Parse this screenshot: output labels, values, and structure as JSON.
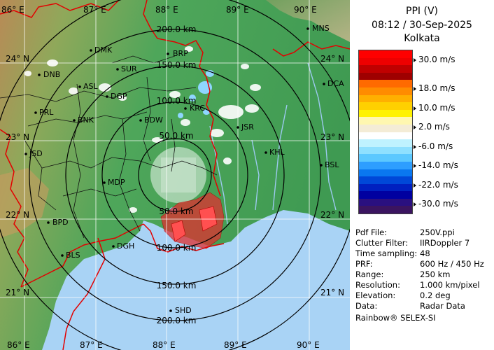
{
  "header": {
    "title": "PPI (V)",
    "datetime": "08:12 / 30-Sep-2025",
    "station": "Kolkata"
  },
  "colorbar": {
    "segments": [
      "#ff0000",
      "#ee0000",
      "#c00000",
      "#9e0000",
      "#ff6a00",
      "#ff8c00",
      "#ffb000",
      "#ffd000",
      "#fff200",
      "#fff7b0",
      "#f4ecd6",
      "#ffffff",
      "#bff2ff",
      "#8fe0ff",
      "#5cc8ff",
      "#2e9eff",
      "#0a78f0",
      "#0048d8",
      "#0020c0",
      "#0000a0",
      "#2a1080",
      "#3b1460"
    ],
    "labels": [
      "30.0 m/s",
      "18.0 m/s",
      "10.0 m/s",
      "2.0 m/s",
      "-6.0 m/s",
      "-14.0 m/s",
      "-22.0 m/s",
      "-30.0 m/s"
    ]
  },
  "info": [
    {
      "key": "Pdf File:",
      "value": "250V.ppi"
    },
    {
      "key": "Clutter Filter:",
      "value": "IIRDoppler 7"
    },
    {
      "key": "Time sampling:",
      "value": "48"
    },
    {
      "key": "PRF:",
      "value": "600 Hz / 450 Hz"
    },
    {
      "key": "Range:",
      "value": "250 km"
    },
    {
      "key": "Resolution:",
      "value": "1.000 km/pixel"
    },
    {
      "key": "Elevation:",
      "value": "0.2 deg"
    },
    {
      "key": "Data:",
      "value": "Radar Data"
    }
  ],
  "brand": "Rainbow® SELEX-SI",
  "map": {
    "lon_labels_top": [
      "86° E",
      "87° E",
      "88° E",
      "89° E",
      "90° E"
    ],
    "lon_labels_bottom": [
      "86° E",
      "87° E",
      "88° E",
      "89° E",
      "90° E"
    ],
    "lat_labels_left": [
      "24° N",
      "23° N",
      "22° N",
      "21° N"
    ],
    "lat_labels_right": [
      "24° N",
      "23° N",
      "22° N",
      "21° N"
    ],
    "ring_labels": [
      "200.0 km",
      "150.0 km",
      "100.0 km",
      "50.0 km",
      "50.0 km",
      "100.0 km",
      "150.0 km",
      "200.0 km"
    ],
    "cities": [
      "MNS",
      "DMK",
      "BRP",
      "DNB",
      "SUR",
      "ASL",
      "DGP",
      "DCA",
      "KRC",
      "PRL",
      "BNK",
      "BDW",
      "JSR",
      "JSD",
      "KHL",
      "MDP",
      "BSL",
      "BPD",
      "DGH",
      "BLS",
      "SHD"
    ],
    "colors": {
      "land_green": "#4ea65a",
      "sea": "#a9d3f5",
      "border": "#e30000",
      "district": "#000000"
    }
  }
}
